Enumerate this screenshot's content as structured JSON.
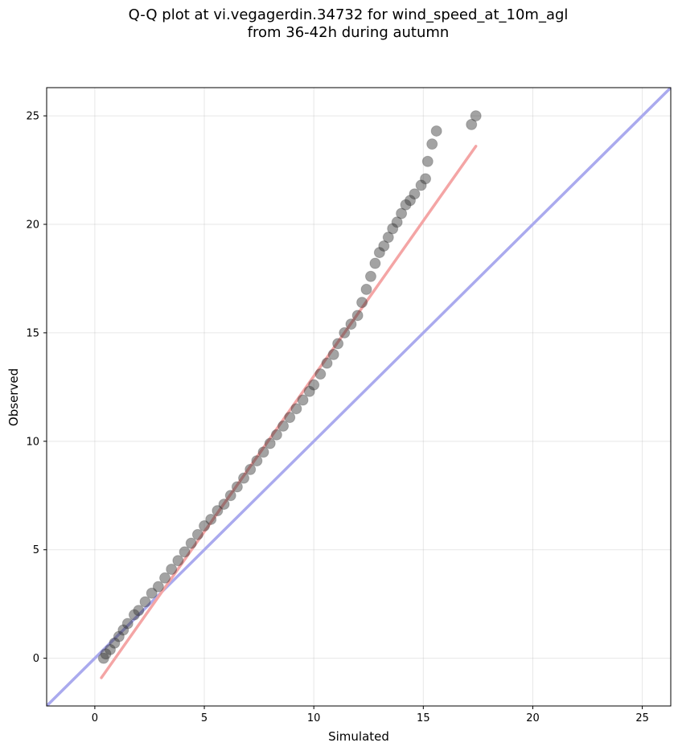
{
  "chart_data": {
    "type": "scatter",
    "title_lines": [
      "Q-Q plot at vi.vegagerdin.34732 for wind_speed_at_10m_agl",
      "from 36-42h during autumn"
    ],
    "xlabel": "Simulated",
    "ylabel": "Observed",
    "xlim": [
      -2.2,
      26.3
    ],
    "ylim": [
      -2.2,
      26.3
    ],
    "xticks": [
      0,
      5,
      10,
      15,
      20,
      25
    ],
    "yticks": [
      0,
      5,
      10,
      15,
      20,
      25
    ],
    "grid": true,
    "colors": {
      "points": "#333333",
      "identity_line": "#aaaaee",
      "fit_line": "#f4a5a5"
    },
    "identity_line": {
      "x": [
        -2.2,
        26.3
      ],
      "y": [
        -2.2,
        26.3
      ]
    },
    "fit_line": {
      "x": [
        0.3,
        17.4
      ],
      "y": [
        -0.9,
        23.6
      ]
    },
    "points": {
      "x": [
        0.4,
        0.5,
        0.7,
        0.9,
        1.1,
        1.3,
        1.5,
        1.8,
        2.0,
        2.3,
        2.6,
        2.9,
        3.2,
        3.5,
        3.8,
        4.1,
        4.4,
        4.7,
        5.0,
        5.3,
        5.6,
        5.9,
        6.2,
        6.5,
        6.8,
        7.1,
        7.4,
        7.7,
        8.0,
        8.3,
        8.6,
        8.9,
        9.2,
        9.5,
        9.8,
        10.0,
        10.3,
        10.6,
        10.9,
        11.1,
        11.4,
        11.7,
        12.0,
        12.2,
        12.4,
        12.6,
        12.8,
        13.0,
        13.2,
        13.4,
        13.6,
        13.8,
        14.0,
        14.2,
        14.4,
        14.6,
        14.9,
        15.1,
        15.2,
        15.4,
        15.6,
        17.2,
        17.4
      ],
      "y": [
        0.0,
        0.2,
        0.4,
        0.7,
        1.0,
        1.3,
        1.6,
        2.0,
        2.2,
        2.6,
        3.0,
        3.3,
        3.7,
        4.1,
        4.5,
        4.9,
        5.3,
        5.7,
        6.1,
        6.4,
        6.8,
        7.1,
        7.5,
        7.9,
        8.3,
        8.7,
        9.1,
        9.5,
        9.9,
        10.3,
        10.7,
        11.1,
        11.5,
        11.9,
        12.3,
        12.6,
        13.1,
        13.6,
        14.0,
        14.5,
        15.0,
        15.4,
        15.8,
        16.4,
        17.0,
        17.6,
        18.2,
        18.7,
        19.0,
        19.4,
        19.8,
        20.1,
        20.5,
        20.9,
        21.1,
        21.4,
        21.8,
        22.1,
        22.9,
        23.7,
        24.3,
        24.6,
        25.0
      ]
    }
  }
}
